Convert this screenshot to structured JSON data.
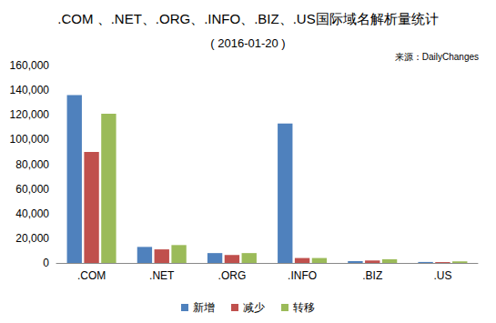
{
  "chart_data": {
    "type": "bar",
    "title": ".COM 、.NET、.ORG、.INFO、.BIZ、.US国际域名解析量统计",
    "subtitle": "( 2016-01-20 )",
    "annotations": [
      "来源：DailyChanges"
    ],
    "categories": [
      ".COM",
      ".NET",
      ".ORG",
      ".INFO",
      ".BIZ",
      ".US"
    ],
    "series": [
      {
        "name": "新增",
        "color": "#4f81bd",
        "values": [
          136000,
          13000,
          8000,
          113000,
          1500,
          800
        ]
      },
      {
        "name": "减少",
        "color": "#c0504d",
        "values": [
          90000,
          11000,
          6500,
          4000,
          2000,
          700
        ]
      },
      {
        "name": "转移",
        "color": "#9bbb59",
        "values": [
          121000,
          14500,
          8000,
          4000,
          3000,
          1200
        ]
      }
    ],
    "ylim": [
      0,
      160000
    ],
    "yticks": [
      0,
      {
        "value": 20000,
        "label": "20,000"
      },
      {
        "value": 40000,
        "label": "40,000"
      },
      {
        "value": 60000,
        "label": "60,000"
      },
      {
        "value": 80000,
        "label": "80,000"
      },
      {
        "value": 100000,
        "label": "100,000"
      },
      {
        "value": 120000,
        "label": "120,000"
      },
      {
        "value": 140000,
        "label": "140,000"
      },
      {
        "value": 160000,
        "label": "160,000"
      }
    ],
    "grid": false,
    "legend": "bottom"
  }
}
